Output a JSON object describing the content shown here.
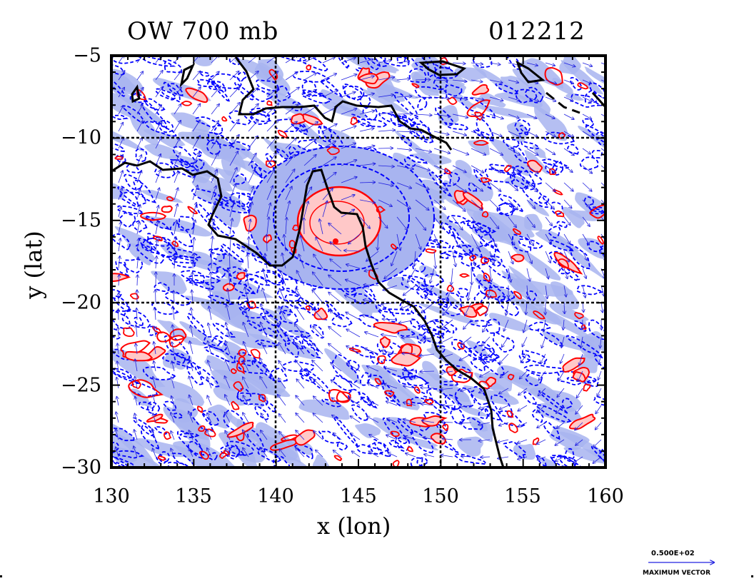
{
  "title_left": "OW 700 mb",
  "title_right": "012212",
  "xlabel": "x (lon)",
  "ylabel": "y (lat)",
  "x_ticks": [
    "130",
    "135",
    "140",
    "145",
    "150",
    "155",
    "160"
  ],
  "y_ticks": [
    "−5",
    "−10",
    "−15",
    "−20",
    "−25",
    "−30"
  ],
  "vector_key_value": "0.500E+02",
  "vector_key_label": "MAXIMUM VECTOR",
  "colors": {
    "positive_contour": "#ff0000",
    "positive_fill": "#ffc8c8",
    "negative_contour": "#0000ff",
    "negative_fill": "#a8b4f0",
    "coastline": "#000000",
    "vectors": "#2020e0"
  },
  "map_extent": {
    "lon": [
      130,
      160
    ],
    "lat": [
      -30,
      -5
    ]
  },
  "grid_lines": {
    "lon": [
      140,
      150
    ],
    "lat": [
      -10,
      -20
    ]
  }
}
